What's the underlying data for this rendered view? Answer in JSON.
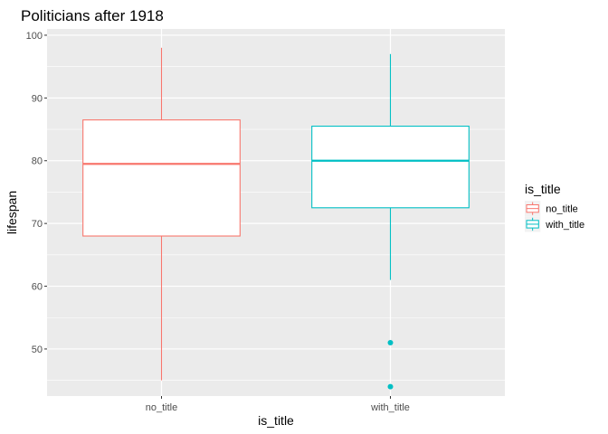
{
  "chart_data": {
    "type": "box",
    "title": "Politicians after 1918",
    "xlabel": "is_title",
    "ylabel": "lifespan",
    "ylim": [
      42.5,
      101
    ],
    "yticks": [
      50,
      60,
      70,
      80,
      90,
      100
    ],
    "grid": true,
    "legend": {
      "title": "is_title",
      "placement": "right",
      "entries": [
        "no_title",
        "with_title"
      ]
    },
    "categories": [
      "no_title",
      "with_title"
    ],
    "series": [
      {
        "name": "no_title",
        "color": "#F8766D",
        "min": 45,
        "q1": 68,
        "median": 79.5,
        "q3": 86.5,
        "max": 98,
        "outliers": []
      },
      {
        "name": "with_title",
        "color": "#00BFC4",
        "min": 61,
        "q1": 72.5,
        "median": 80,
        "q3": 85.5,
        "max": 97,
        "outliers": [
          51,
          44
        ]
      }
    ]
  }
}
